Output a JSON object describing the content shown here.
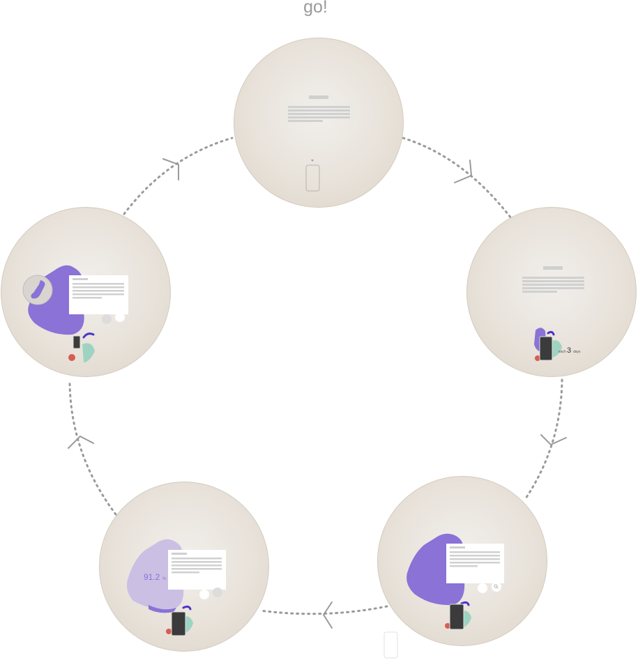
{
  "title": "go!",
  "colors": {
    "orb_center": "#f1efec",
    "orb_edge": "#ddd4c9",
    "purple": "#8a72d6",
    "lavender": "#cbbfe4",
    "indigo": "#4a36c9",
    "coral": "#d85c50",
    "mint": "#9ed3c2",
    "phone": "#3b3b3b",
    "path": "#9a9a9a"
  },
  "steps": [
    {
      "id": "intro",
      "icon": "phone-outline-icon"
    },
    {
      "id": "days",
      "counter_prefix": "each",
      "counter_value": "3",
      "counter_suffix": "days"
    },
    {
      "id": "search",
      "icon": "search-icon"
    },
    {
      "id": "score",
      "metric_value": "91.2",
      "metric_unit": "%"
    },
    {
      "id": "call",
      "icon": "phone-handset-icon"
    }
  ]
}
